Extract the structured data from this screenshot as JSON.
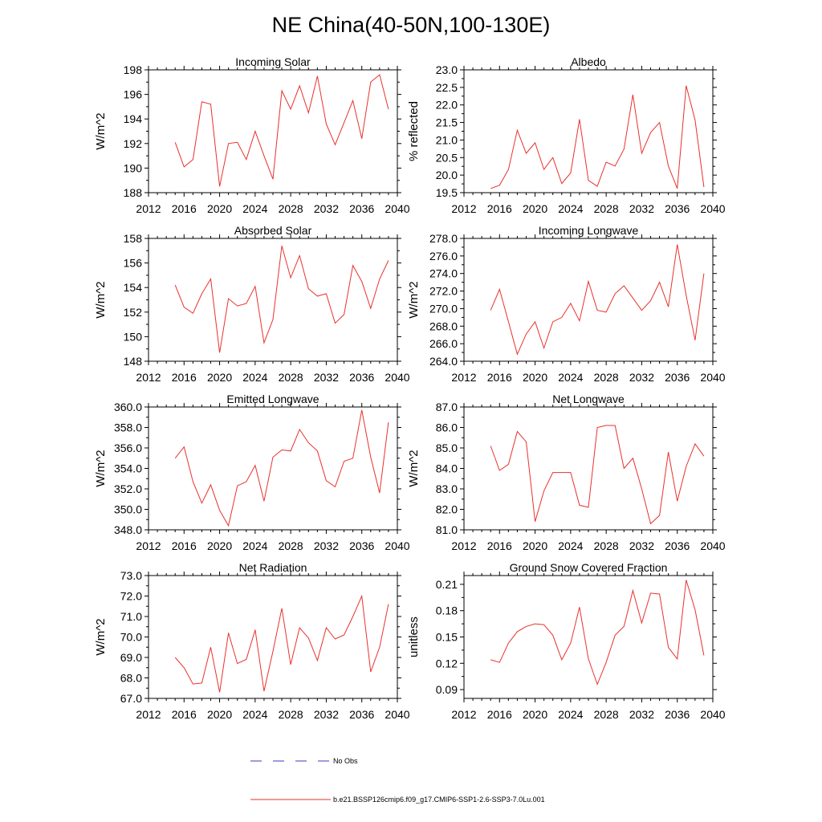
{
  "title": "NE China(40-50N,100-130E)",
  "legend": [
    {
      "label": "No Obs",
      "color": "#3b3bbd",
      "style": "dashed"
    },
    {
      "label": "b.e21.BSSP126cmip6.f09_g17.CMIP6-SSP1-2.6-SSP3-7.0Lu.001",
      "color": "#e8312d",
      "style": "solid"
    }
  ],
  "chart_data": [
    {
      "type": "line",
      "title": "Incoming Solar",
      "ylabel": "W/m^2",
      "xlim": [
        2012,
        2040
      ],
      "ylim": [
        188,
        198
      ],
      "xticks": [
        2012,
        2016,
        2020,
        2024,
        2028,
        2032,
        2036,
        2040
      ],
      "yticks": [
        188,
        190,
        192,
        194,
        196,
        198
      ],
      "ytick_decimals": 0,
      "color": "#e8312d",
      "x": [
        2015,
        2016,
        2017,
        2018,
        2019,
        2020,
        2021,
        2022,
        2023,
        2024,
        2025,
        2026,
        2027,
        2028,
        2029,
        2030,
        2031,
        2032,
        2033,
        2034,
        2035,
        2036,
        2037,
        2038,
        2039
      ],
      "y": [
        192.1,
        190.1,
        190.7,
        195.4,
        195.2,
        188.5,
        192.0,
        192.1,
        190.7,
        193.0,
        191.0,
        189.1,
        196.3,
        194.8,
        196.7,
        194.5,
        197.5,
        193.6,
        191.9,
        193.7,
        195.5,
        192.4,
        197.0,
        197.6,
        194.8
      ]
    },
    {
      "type": "line",
      "title": "Albedo",
      "ylabel": "% reflected",
      "xlim": [
        2012,
        2040
      ],
      "ylim": [
        19.5,
        23.0
      ],
      "xticks": [
        2012,
        2016,
        2020,
        2024,
        2028,
        2032,
        2036,
        2040
      ],
      "yticks": [
        19.5,
        20.0,
        20.5,
        21.0,
        21.5,
        22.0,
        22.5,
        23.0
      ],
      "ytick_decimals": 1,
      "color": "#e8312d",
      "x": [
        2015,
        2016,
        2017,
        2018,
        2019,
        2020,
        2021,
        2022,
        2023,
        2024,
        2025,
        2026,
        2027,
        2028,
        2029,
        2030,
        2031,
        2032,
        2033,
        2034,
        2035,
        2036,
        2037,
        2038,
        2039
      ],
      "y": [
        19.62,
        19.71,
        20.16,
        21.28,
        20.62,
        20.92,
        20.16,
        20.5,
        19.76,
        20.06,
        21.59,
        19.85,
        19.68,
        20.37,
        20.26,
        20.74,
        22.29,
        20.62,
        21.21,
        21.5,
        20.26,
        19.62,
        22.55,
        21.57,
        19.66
      ]
    },
    {
      "type": "line",
      "title": "Absorbed Solar",
      "ylabel": "W/m^2",
      "xlim": [
        2012,
        2040
      ],
      "ylim": [
        148,
        158
      ],
      "xticks": [
        2012,
        2016,
        2020,
        2024,
        2028,
        2032,
        2036,
        2040
      ],
      "yticks": [
        148,
        150,
        152,
        154,
        156,
        158
      ],
      "ytick_decimals": 0,
      "color": "#e8312d",
      "x": [
        2015,
        2016,
        2017,
        2018,
        2019,
        2020,
        2021,
        2022,
        2023,
        2024,
        2025,
        2026,
        2027,
        2028,
        2029,
        2030,
        2031,
        2032,
        2033,
        2034,
        2035,
        2036,
        2037,
        2038,
        2039
      ],
      "y": [
        154.2,
        152.4,
        151.9,
        153.5,
        154.7,
        148.7,
        153.1,
        152.5,
        152.7,
        154.1,
        149.5,
        151.4,
        157.4,
        154.8,
        156.6,
        153.9,
        153.3,
        153.5,
        151.1,
        151.8,
        155.8,
        154.5,
        152.3,
        154.7,
        156.2
      ]
    },
    {
      "type": "line",
      "title": "Incoming Longwave",
      "ylabel": "W/m^2",
      "xlim": [
        2012,
        2040
      ],
      "ylim": [
        264,
        278
      ],
      "xticks": [
        2012,
        2016,
        2020,
        2024,
        2028,
        2032,
        2036,
        2040
      ],
      "yticks": [
        264,
        266,
        268,
        270,
        272,
        274,
        276,
        278
      ],
      "ytick_decimals": 1,
      "color": "#e8312d",
      "x": [
        2015,
        2016,
        2017,
        2018,
        2019,
        2020,
        2021,
        2022,
        2023,
        2024,
        2025,
        2026,
        2027,
        2028,
        2029,
        2030,
        2031,
        2032,
        2033,
        2034,
        2035,
        2036,
        2037,
        2038,
        2039
      ],
      "y": [
        269.8,
        272.2,
        268.5,
        264.8,
        267.1,
        268.5,
        265.5,
        268.5,
        269.0,
        270.6,
        268.6,
        273.1,
        269.8,
        269.6,
        271.7,
        272.6,
        271.2,
        269.8,
        270.9,
        273.0,
        270.2,
        277.3,
        271.5,
        266.4,
        274.0
      ]
    },
    {
      "type": "line",
      "title": "Emitted Longwave",
      "ylabel": "W/m^2",
      "xlim": [
        2012,
        2040
      ],
      "ylim": [
        348,
        360
      ],
      "xticks": [
        2012,
        2016,
        2020,
        2024,
        2028,
        2032,
        2036,
        2040
      ],
      "yticks": [
        348,
        350,
        352,
        354,
        356,
        358,
        360
      ],
      "ytick_decimals": 1,
      "color": "#e8312d",
      "x": [
        2015,
        2016,
        2017,
        2018,
        2019,
        2020,
        2021,
        2022,
        2023,
        2024,
        2025,
        2026,
        2027,
        2028,
        2029,
        2030,
        2031,
        2032,
        2033,
        2034,
        2035,
        2036,
        2037,
        2038,
        2039
      ],
      "y": [
        355.0,
        356.1,
        352.7,
        350.6,
        352.4,
        349.9,
        348.4,
        352.3,
        352.7,
        354.3,
        350.8,
        355.1,
        355.8,
        355.7,
        357.8,
        356.5,
        355.7,
        352.8,
        352.2,
        354.7,
        355.0,
        359.7,
        355.1,
        351.6,
        358.5
      ]
    },
    {
      "type": "line",
      "title": "Net Longwave",
      "ylabel": "W/m^2",
      "xlim": [
        2012,
        2040
      ],
      "ylim": [
        81,
        87
      ],
      "xticks": [
        2012,
        2016,
        2020,
        2024,
        2028,
        2032,
        2036,
        2040
      ],
      "yticks": [
        81,
        82,
        83,
        84,
        85,
        86,
        87
      ],
      "ytick_decimals": 1,
      "color": "#e8312d",
      "x": [
        2015,
        2016,
        2017,
        2018,
        2019,
        2020,
        2021,
        2022,
        2023,
        2024,
        2025,
        2026,
        2027,
        2028,
        2029,
        2030,
        2031,
        2032,
        2033,
        2034,
        2035,
        2036,
        2037,
        2038,
        2039
      ],
      "y": [
        85.1,
        83.9,
        84.2,
        85.8,
        85.3,
        81.4,
        82.9,
        83.8,
        83.8,
        83.8,
        82.2,
        82.1,
        86.0,
        86.1,
        86.1,
        84.0,
        84.5,
        83.0,
        81.3,
        81.7,
        84.8,
        82.4,
        84.1,
        85.2,
        84.6
      ]
    },
    {
      "type": "line",
      "title": "Net Radiation",
      "ylabel": "W/m^2",
      "xlim": [
        2012,
        2040
      ],
      "ylim": [
        67,
        73
      ],
      "xticks": [
        2012,
        2016,
        2020,
        2024,
        2028,
        2032,
        2036,
        2040
      ],
      "yticks": [
        67,
        68,
        69,
        70,
        71,
        72,
        73
      ],
      "ytick_decimals": 1,
      "color": "#e8312d",
      "x": [
        2015,
        2016,
        2017,
        2018,
        2019,
        2020,
        2021,
        2022,
        2023,
        2024,
        2025,
        2026,
        2027,
        2028,
        2029,
        2030,
        2031,
        2032,
        2033,
        2034,
        2035,
        2036,
        2037,
        2038,
        2039
      ],
      "y": [
        69.0,
        68.5,
        67.7,
        67.75,
        69.5,
        67.3,
        70.2,
        68.7,
        68.9,
        70.35,
        67.35,
        69.3,
        71.4,
        68.65,
        70.45,
        69.95,
        68.85,
        70.45,
        69.9,
        70.1,
        71.0,
        72.0,
        68.3,
        69.5,
        71.6
      ]
    },
    {
      "type": "line",
      "title": "Ground Snow Covered Fraction",
      "ylabel": "unitless",
      "xlim": [
        2012,
        2040
      ],
      "ylim": [
        0.08,
        0.22
      ],
      "xticks": [
        2012,
        2016,
        2020,
        2024,
        2028,
        2032,
        2036,
        2040
      ],
      "yticks": [
        0.09,
        0.12,
        0.15,
        0.18,
        0.21
      ],
      "ytick_decimals": 2,
      "color": "#e8312d",
      "x": [
        2015,
        2016,
        2017,
        2018,
        2019,
        2020,
        2021,
        2022,
        2023,
        2024,
        2025,
        2026,
        2027,
        2028,
        2029,
        2030,
        2031,
        2032,
        2033,
        2034,
        2035,
        2036,
        2037,
        2038,
        2039
      ],
      "y": [
        0.124,
        0.121,
        0.143,
        0.156,
        0.162,
        0.165,
        0.164,
        0.152,
        0.124,
        0.143,
        0.184,
        0.125,
        0.096,
        0.121,
        0.152,
        0.162,
        0.203,
        0.166,
        0.2,
        0.199,
        0.138,
        0.125,
        0.215,
        0.181,
        0.129
      ]
    }
  ]
}
